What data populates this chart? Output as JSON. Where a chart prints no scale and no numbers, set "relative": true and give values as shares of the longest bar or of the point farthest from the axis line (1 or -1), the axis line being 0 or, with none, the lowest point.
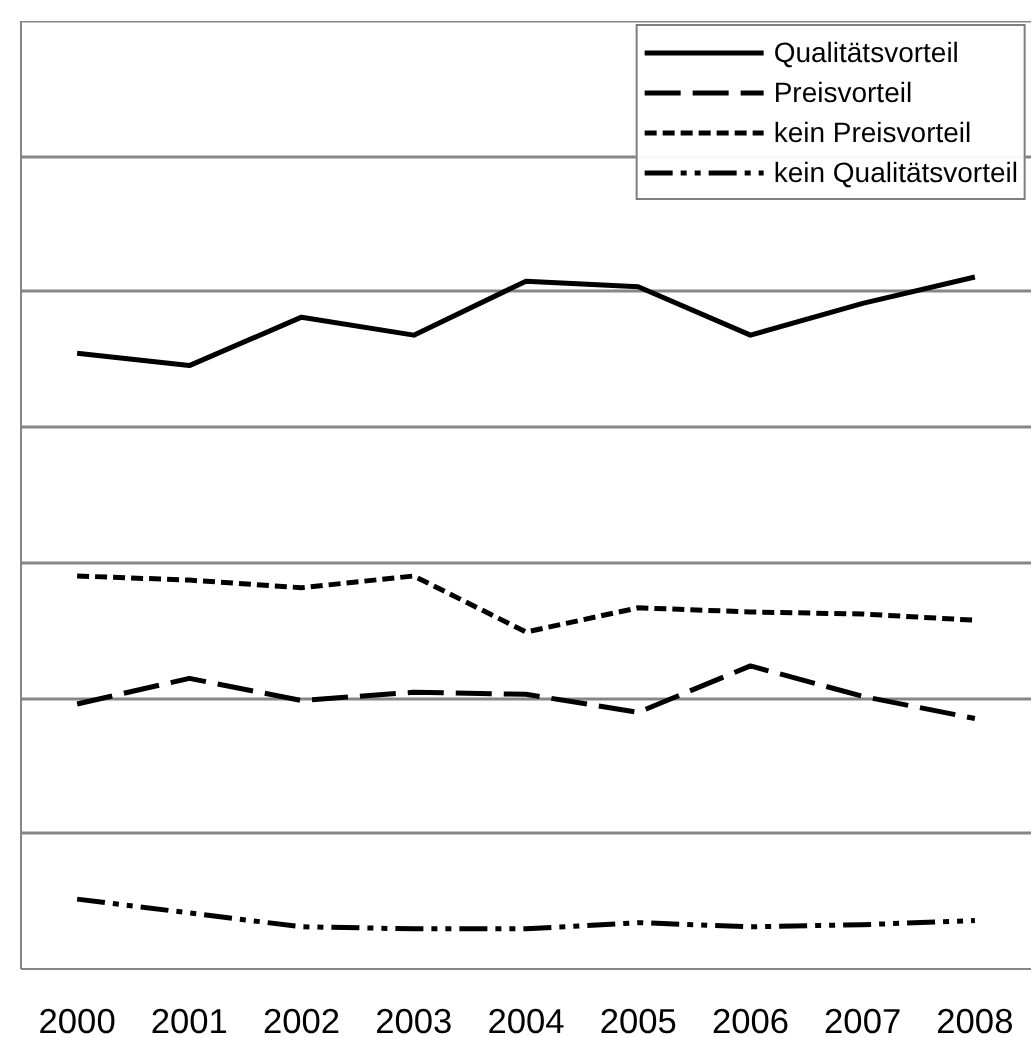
{
  "chart_data": {
    "type": "line",
    "relative": true,
    "categories": [
      "2000",
      "2001",
      "2002",
      "2003",
      "2004",
      "2005",
      "2006",
      "2007",
      "2008"
    ],
    "series": [
      {
        "name": "Qualitätsvorteil",
        "color": "#000000",
        "line_style": "solid",
        "values": [
          0.89,
          0.872,
          0.942,
          0.916,
          0.994,
          0.986,
          0.916,
          0.962,
          1.0
        ]
      },
      {
        "name": "Preisvorteil",
        "color": "#000000",
        "line_style": "dashed",
        "values": [
          0.383,
          0.42,
          0.388,
          0.4,
          0.397,
          0.371,
          0.438,
          0.394,
          0.362
        ]
      },
      {
        "name": "kein Preisvorteil",
        "color": "#000000",
        "line_style": "dotted",
        "values": [
          0.568,
          0.562,
          0.551,
          0.568,
          0.487,
          0.522,
          0.516,
          0.513,
          0.504
        ]
      },
      {
        "name": "kein Qualitätsvorteil",
        "color": "#000000",
        "line_style": "dashdot",
        "values": [
          0.101,
          0.081,
          0.061,
          0.058,
          0.058,
          0.067,
          0.061,
          0.064,
          0.07
        ]
      }
    ],
    "grid": "y",
    "legend": "top right",
    "marker": "none"
  }
}
